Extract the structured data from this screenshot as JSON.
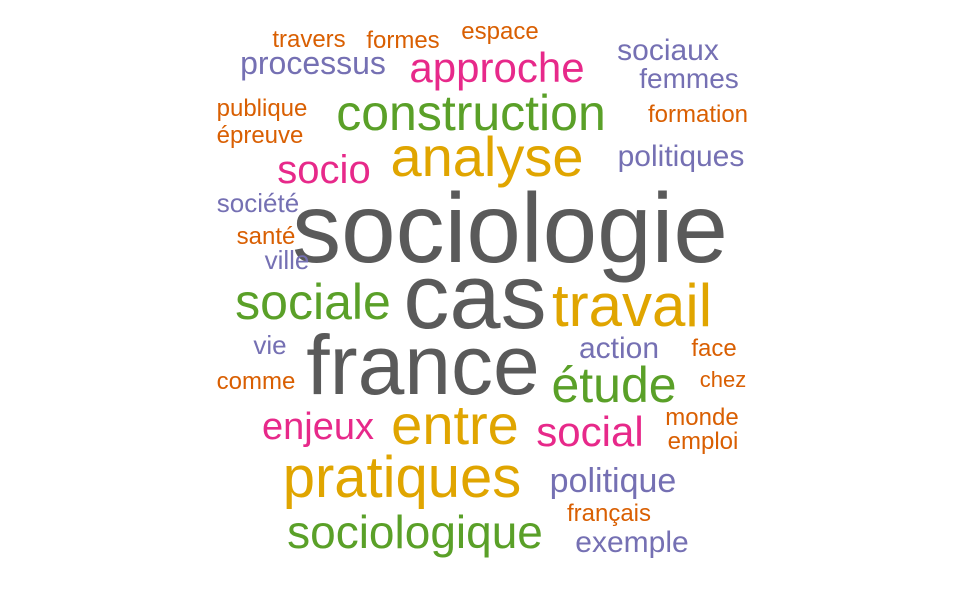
{
  "colors": {
    "gray": "#5a5a5a",
    "orange": "#e0a500",
    "green": "#5aa028",
    "purple": "#7570b3",
    "pink": "#e7298a",
    "rust": "#d95f02"
  },
  "words": [
    {
      "text": "sociologie",
      "color": "gray"
    },
    {
      "text": "cas",
      "color": "gray"
    },
    {
      "text": "france",
      "color": "gray"
    },
    {
      "text": "travail",
      "color": "orange"
    },
    {
      "text": "analyse",
      "color": "orange"
    },
    {
      "text": "entre",
      "color": "orange"
    },
    {
      "text": "pratiques",
      "color": "orange"
    },
    {
      "text": "construction",
      "color": "green"
    },
    {
      "text": "sociale",
      "color": "green"
    },
    {
      "text": "étude",
      "color": "green"
    },
    {
      "text": "sociologique",
      "color": "green"
    },
    {
      "text": "approche",
      "color": "pink"
    },
    {
      "text": "socio",
      "color": "pink"
    },
    {
      "text": "social",
      "color": "pink"
    },
    {
      "text": "enjeux",
      "color": "pink"
    },
    {
      "text": "processus",
      "color": "purple"
    },
    {
      "text": "sociaux",
      "color": "purple"
    },
    {
      "text": "femmes",
      "color": "purple"
    },
    {
      "text": "politiques",
      "color": "purple"
    },
    {
      "text": "société",
      "color": "purple"
    },
    {
      "text": "ville",
      "color": "purple"
    },
    {
      "text": "vie",
      "color": "purple"
    },
    {
      "text": "action",
      "color": "purple"
    },
    {
      "text": "politique",
      "color": "purple"
    },
    {
      "text": "exemple",
      "color": "purple"
    },
    {
      "text": "travers",
      "color": "rust"
    },
    {
      "text": "formes",
      "color": "rust"
    },
    {
      "text": "espace",
      "color": "rust"
    },
    {
      "text": "publique",
      "color": "rust"
    },
    {
      "text": "épreuve",
      "color": "rust"
    },
    {
      "text": "formation",
      "color": "rust"
    },
    {
      "text": "santé",
      "color": "rust"
    },
    {
      "text": "face",
      "color": "rust"
    },
    {
      "text": "chez",
      "color": "rust"
    },
    {
      "text": "comme",
      "color": "rust"
    },
    {
      "text": "monde",
      "color": "rust"
    },
    {
      "text": "emploi",
      "color": "rust"
    },
    {
      "text": "français",
      "color": "rust"
    }
  ]
}
